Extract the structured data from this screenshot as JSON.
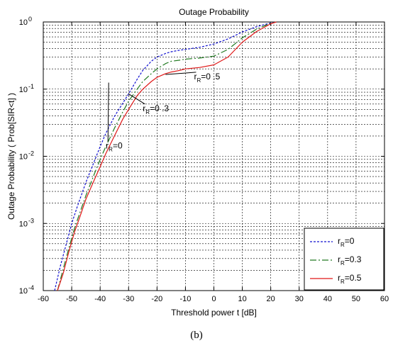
{
  "caption": "(b)",
  "chart_data": {
    "type": "line",
    "title": "Outage Probability",
    "xlabel": "Threshold power t [dB]",
    "ylabel": "Outage Probability ( Prob[SIR<t] )",
    "xlim": [
      -60,
      60
    ],
    "ylim": [
      0.0001,
      1
    ],
    "yscale": "log",
    "grid": true,
    "legend_position": "bottom-right",
    "x_ticks": [
      "-60",
      "-50",
      "-40",
      "-30",
      "-20",
      "-10",
      "0",
      "10",
      "20",
      "30",
      "40",
      "50",
      "60"
    ],
    "y_ticks": [
      {
        "base": "10",
        "exp": "-4",
        "value": 0.0001
      },
      {
        "base": "10",
        "exp": "-3",
        "value": 0.001
      },
      {
        "base": "10",
        "exp": "-2",
        "value": 0.01
      },
      {
        "base": "10",
        "exp": "-1",
        "value": 0.1
      },
      {
        "base": "10",
        "exp": "0",
        "value": 1
      }
    ],
    "series": [
      {
        "name": "r_R=0",
        "label_main": "r",
        "label_sub": "R",
        "label_rest": "=0",
        "color": "#1010d0",
        "dash": "3,2",
        "x": [
          -56,
          -54,
          -52,
          -50,
          -48,
          -45,
          -42,
          -40,
          -38,
          -35,
          -32,
          -30,
          -27,
          -25,
          -22,
          -20,
          -17,
          -15,
          -12,
          -10,
          -5,
          0,
          5,
          10,
          15,
          20,
          22
        ],
        "y": [
          0.0001,
          0.00023,
          0.00048,
          0.001,
          0.0018,
          0.0041,
          0.0085,
          0.014,
          0.022,
          0.039,
          0.062,
          0.085,
          0.14,
          0.19,
          0.26,
          0.3,
          0.34,
          0.36,
          0.38,
          0.39,
          0.42,
          0.47,
          0.56,
          0.71,
          0.85,
          0.97,
          1.0
        ]
      },
      {
        "name": "r_R=0.3",
        "label_main": "r",
        "label_sub": "R",
        "label_rest": "=0.3",
        "color": "#207a20",
        "dash": "9,3,2,3",
        "x": [
          -55,
          -53,
          -51,
          -49,
          -47,
          -45,
          -42,
          -40,
          -38,
          -35,
          -32,
          -30,
          -27,
          -25,
          -22,
          -20,
          -17,
          -15,
          -12,
          -10,
          -5,
          0,
          5,
          10,
          15,
          20,
          22
        ],
        "y": [
          0.0001,
          0.00021,
          0.00043,
          0.00085,
          0.0015,
          0.0026,
          0.0055,
          0.009,
          0.014,
          0.026,
          0.046,
          0.066,
          0.1,
          0.13,
          0.17,
          0.2,
          0.24,
          0.26,
          0.27,
          0.28,
          0.29,
          0.31,
          0.39,
          0.58,
          0.78,
          0.96,
          1.0
        ]
      },
      {
        "name": "r_R=0.5",
        "label_main": "r",
        "label_sub": "R",
        "label_rest": "=0.5",
        "color": "#e01818",
        "dash": "",
        "x": [
          -55,
          -53,
          -51,
          -49,
          -47,
          -45,
          -42,
          -40,
          -38,
          -35,
          -32,
          -30,
          -27,
          -25,
          -22,
          -20,
          -17,
          -15,
          -12,
          -10,
          -5,
          0,
          5,
          10,
          15,
          20,
          22
        ],
        "y": [
          0.0001,
          0.00018,
          0.00038,
          0.00075,
          0.0013,
          0.0023,
          0.0045,
          0.007,
          0.011,
          0.02,
          0.036,
          0.05,
          0.08,
          0.1,
          0.13,
          0.15,
          0.17,
          0.18,
          0.19,
          0.2,
          0.21,
          0.23,
          0.3,
          0.5,
          0.72,
          0.94,
          1.0
        ]
      }
    ],
    "annotations": [
      {
        "main": "r",
        "sub": "R",
        "rest": "=0 .5",
        "x": -7,
        "y": 0.14,
        "arrow_to": [
          -17,
          0.165
        ]
      },
      {
        "main": "r",
        "sub": "R",
        "rest": "=0 .3",
        "x": -25,
        "y": 0.047,
        "arrow_to": [
          -30,
          0.085
        ]
      },
      {
        "main": "r",
        "sub": "R",
        "rest": "=0",
        "x": -38,
        "y": 0.013,
        "arrow_to": [
          -37,
          0.125
        ]
      }
    ]
  }
}
